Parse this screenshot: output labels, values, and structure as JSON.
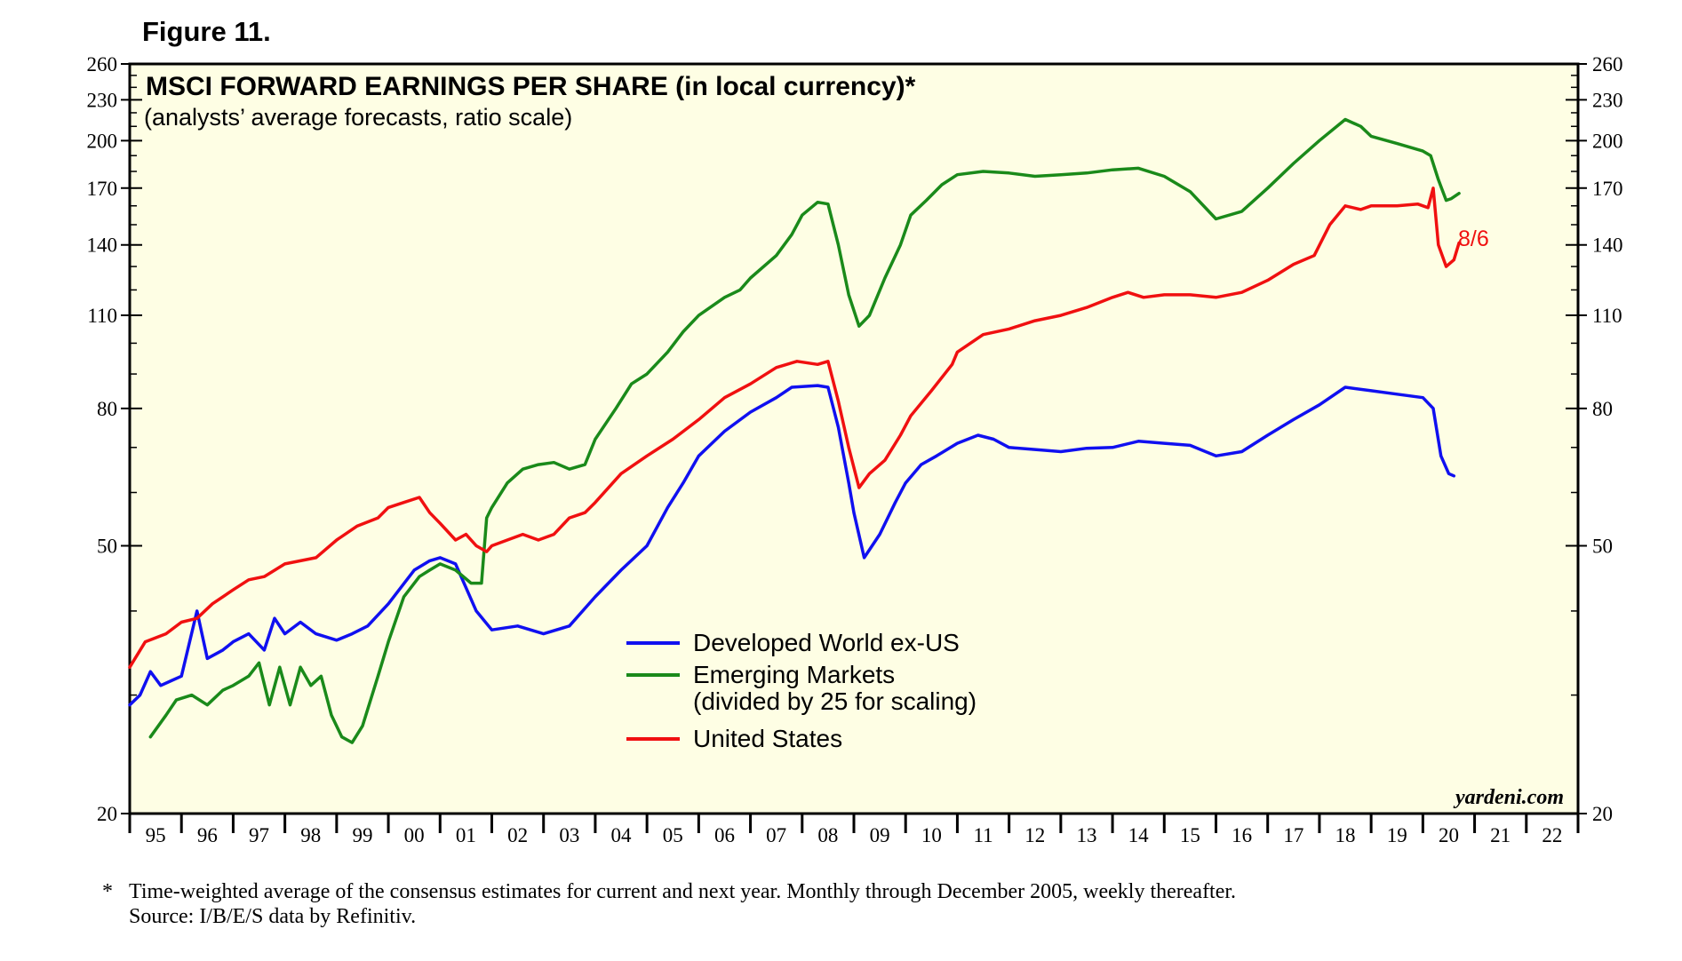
{
  "figure_label": "Figure 11.",
  "footnote": {
    "marker": "*",
    "line1": "Time-weighted average of the consensus estimates for current and next year. Monthly through December 2005, weekly thereafter.",
    "line2": "Source: I/B/E/S data by Refinitiv."
  },
  "colors": {
    "plot_bg": "#fefee4",
    "developed": "#1010f0",
    "emerging": "#1a8a1a",
    "us": "#f01010",
    "frame": "#000000"
  },
  "chart_data": {
    "type": "line",
    "title": "MSCI FORWARD EARNINGS PER SHARE (in local currency)*",
    "subtitle": "(analysts’ average forecasts, ratio scale)",
    "y_scale": "log",
    "ylim": [
      20,
      260
    ],
    "y_ticks": [
      20,
      50,
      80,
      110,
      140,
      170,
      200,
      230,
      260
    ],
    "xlim": [
      1995,
      2023
    ],
    "x_tick_labels": [
      "95",
      "96",
      "97",
      "98",
      "99",
      "00",
      "01",
      "02",
      "03",
      "04",
      "05",
      "06",
      "07",
      "08",
      "09",
      "10",
      "11",
      "12",
      "13",
      "14",
      "15",
      "16",
      "17",
      "18",
      "19",
      "20",
      "21",
      "22"
    ],
    "watermark": "yardeni.com",
    "end_annotation": "8/6",
    "legend_position": "center",
    "series": [
      {
        "name": "Developed World ex-US",
        "key": "developed",
        "points": [
          [
            1995.0,
            29
          ],
          [
            1995.2,
            30
          ],
          [
            1995.4,
            32.5
          ],
          [
            1995.6,
            31
          ],
          [
            1995.8,
            31.5
          ],
          [
            1996.0,
            32
          ],
          [
            1996.3,
            40
          ],
          [
            1996.5,
            34
          ],
          [
            1996.8,
            35
          ],
          [
            1997.0,
            36
          ],
          [
            1997.3,
            37
          ],
          [
            1997.6,
            35
          ],
          [
            1997.8,
            39
          ],
          [
            1998.0,
            37
          ],
          [
            1998.3,
            38.5
          ],
          [
            1998.6,
            37
          ],
          [
            1999.0,
            36.2
          ],
          [
            1999.3,
            37
          ],
          [
            1999.6,
            38
          ],
          [
            2000.0,
            41
          ],
          [
            2000.5,
            46
          ],
          [
            2000.8,
            47.5
          ],
          [
            2001.0,
            48
          ],
          [
            2001.3,
            47
          ],
          [
            2001.7,
            40
          ],
          [
            2002.0,
            37.5
          ],
          [
            2002.5,
            38
          ],
          [
            2003.0,
            37
          ],
          [
            2003.5,
            38
          ],
          [
            2004.0,
            42
          ],
          [
            2004.5,
            46
          ],
          [
            2005.0,
            50
          ],
          [
            2005.4,
            57
          ],
          [
            2005.7,
            62
          ],
          [
            2006.0,
            68
          ],
          [
            2006.5,
            74
          ],
          [
            2007.0,
            79
          ],
          [
            2007.5,
            83
          ],
          [
            2007.8,
            86
          ],
          [
            2008.3,
            86.5
          ],
          [
            2008.5,
            86
          ],
          [
            2008.7,
            75
          ],
          [
            2008.9,
            62
          ],
          [
            2009.0,
            56
          ],
          [
            2009.2,
            48
          ],
          [
            2009.5,
            52
          ],
          [
            2009.8,
            58
          ],
          [
            2010.0,
            62
          ],
          [
            2010.3,
            66
          ],
          [
            2010.6,
            68
          ],
          [
            2011.0,
            71
          ],
          [
            2011.4,
            73
          ],
          [
            2011.7,
            72
          ],
          [
            2012.0,
            70
          ],
          [
            2012.5,
            69.5
          ],
          [
            2013.0,
            69
          ],
          [
            2013.5,
            69.8
          ],
          [
            2014.0,
            70
          ],
          [
            2014.5,
            71.5
          ],
          [
            2015.0,
            71
          ],
          [
            2015.5,
            70.5
          ],
          [
            2016.0,
            68
          ],
          [
            2016.5,
            69
          ],
          [
            2017.0,
            73
          ],
          [
            2017.5,
            77
          ],
          [
            2018.0,
            81
          ],
          [
            2018.5,
            86
          ],
          [
            2019.0,
            85
          ],
          [
            2019.5,
            84
          ],
          [
            2020.0,
            83
          ],
          [
            2020.2,
            80
          ],
          [
            2020.35,
            68
          ],
          [
            2020.5,
            64
          ],
          [
            2020.6,
            63.5
          ]
        ]
      },
      {
        "name": "Emerging Markets (divided by 25 for scaling)",
        "key": "emerging",
        "points": [
          [
            1995.4,
            26
          ],
          [
            1995.7,
            28
          ],
          [
            1995.9,
            29.5
          ],
          [
            1996.2,
            30
          ],
          [
            1996.5,
            29
          ],
          [
            1996.8,
            30.5
          ],
          [
            1997.0,
            31
          ],
          [
            1997.3,
            32
          ],
          [
            1997.5,
            33.5
          ],
          [
            1997.7,
            29
          ],
          [
            1997.9,
            33
          ],
          [
            1998.1,
            29
          ],
          [
            1998.3,
            33
          ],
          [
            1998.5,
            31
          ],
          [
            1998.7,
            32
          ],
          [
            1998.9,
            28
          ],
          [
            1999.1,
            26
          ],
          [
            1999.3,
            25.5
          ],
          [
            1999.5,
            27
          ],
          [
            1999.8,
            32
          ],
          [
            2000.0,
            36
          ],
          [
            2000.3,
            42
          ],
          [
            2000.6,
            45
          ],
          [
            2000.8,
            46
          ],
          [
            2001.0,
            47
          ],
          [
            2001.3,
            46
          ],
          [
            2001.6,
            44
          ],
          [
            2001.8,
            44
          ],
          [
            2001.9,
            55
          ],
          [
            2002.0,
            57
          ],
          [
            2002.3,
            62
          ],
          [
            2002.6,
            65
          ],
          [
            2002.9,
            66
          ],
          [
            2003.2,
            66.5
          ],
          [
            2003.5,
            65
          ],
          [
            2003.8,
            66
          ],
          [
            2004.0,
            72
          ],
          [
            2004.4,
            80
          ],
          [
            2004.7,
            87
          ],
          [
            2005.0,
            90
          ],
          [
            2005.4,
            97
          ],
          [
            2005.7,
            104
          ],
          [
            2006.0,
            110
          ],
          [
            2006.5,
            117
          ],
          [
            2006.8,
            120
          ],
          [
            2007.0,
            125
          ],
          [
            2007.5,
            135
          ],
          [
            2007.8,
            145
          ],
          [
            2008.0,
            155
          ],
          [
            2008.3,
            162
          ],
          [
            2008.5,
            161
          ],
          [
            2008.7,
            140
          ],
          [
            2008.9,
            118
          ],
          [
            2009.1,
            106
          ],
          [
            2009.3,
            110
          ],
          [
            2009.6,
            125
          ],
          [
            2009.9,
            140
          ],
          [
            2010.1,
            155
          ],
          [
            2010.4,
            163
          ],
          [
            2010.7,
            172
          ],
          [
            2011.0,
            178
          ],
          [
            2011.5,
            180
          ],
          [
            2012.0,
            179
          ],
          [
            2012.5,
            177
          ],
          [
            2013.0,
            178
          ],
          [
            2013.5,
            179
          ],
          [
            2014.0,
            181
          ],
          [
            2014.5,
            182
          ],
          [
            2015.0,
            177
          ],
          [
            2015.5,
            168
          ],
          [
            2016.0,
            153
          ],
          [
            2016.5,
            157
          ],
          [
            2017.0,
            170
          ],
          [
            2017.5,
            185
          ],
          [
            2018.0,
            200
          ],
          [
            2018.5,
            215
          ],
          [
            2018.8,
            210
          ],
          [
            2019.0,
            203
          ],
          [
            2019.5,
            198
          ],
          [
            2020.0,
            193
          ],
          [
            2020.15,
            190
          ],
          [
            2020.3,
            175
          ],
          [
            2020.45,
            163
          ],
          [
            2020.55,
            164
          ],
          [
            2020.7,
            167
          ]
        ]
      },
      {
        "name": "United States",
        "key": "us",
        "points": [
          [
            1995.0,
            33
          ],
          [
            1995.3,
            36
          ],
          [
            1995.7,
            37
          ],
          [
            1996.0,
            38.5
          ],
          [
            1996.3,
            39
          ],
          [
            1996.6,
            41
          ],
          [
            1997.0,
            43
          ],
          [
            1997.3,
            44.5
          ],
          [
            1997.6,
            45
          ],
          [
            1998.0,
            47
          ],
          [
            1998.3,
            47.5
          ],
          [
            1998.6,
            48
          ],
          [
            1999.0,
            51
          ],
          [
            1999.4,
            53.5
          ],
          [
            1999.8,
            55
          ],
          [
            2000.0,
            57
          ],
          [
            2000.3,
            58
          ],
          [
            2000.6,
            59
          ],
          [
            2000.8,
            56
          ],
          [
            2001.0,
            54
          ],
          [
            2001.3,
            51
          ],
          [
            2001.5,
            52
          ],
          [
            2001.7,
            50
          ],
          [
            2001.9,
            49
          ],
          [
            2002.0,
            50
          ],
          [
            2002.3,
            51
          ],
          [
            2002.6,
            52
          ],
          [
            2002.9,
            51
          ],
          [
            2003.2,
            52
          ],
          [
            2003.5,
            55
          ],
          [
            2003.8,
            56
          ],
          [
            2004.0,
            58
          ],
          [
            2004.5,
            64
          ],
          [
            2005.0,
            68
          ],
          [
            2005.5,
            72
          ],
          [
            2006.0,
            77
          ],
          [
            2006.5,
            83
          ],
          [
            2007.0,
            87
          ],
          [
            2007.5,
            92
          ],
          [
            2007.9,
            94
          ],
          [
            2008.3,
            93
          ],
          [
            2008.5,
            94
          ],
          [
            2008.7,
            82
          ],
          [
            2008.9,
            70
          ],
          [
            2009.1,
            61
          ],
          [
            2009.3,
            64
          ],
          [
            2009.6,
            67
          ],
          [
            2009.9,
            73
          ],
          [
            2010.1,
            78
          ],
          [
            2010.5,
            85
          ],
          [
            2010.9,
            93
          ],
          [
            2011.0,
            97
          ],
          [
            2011.5,
            103
          ],
          [
            2012.0,
            105
          ],
          [
            2012.5,
            108
          ],
          [
            2013.0,
            110
          ],
          [
            2013.5,
            113
          ],
          [
            2014.0,
            117
          ],
          [
            2014.3,
            119
          ],
          [
            2014.6,
            117
          ],
          [
            2015.0,
            118
          ],
          [
            2015.5,
            118
          ],
          [
            2016.0,
            117
          ],
          [
            2016.5,
            119
          ],
          [
            2017.0,
            124
          ],
          [
            2017.5,
            131
          ],
          [
            2017.9,
            135
          ],
          [
            2018.2,
            150
          ],
          [
            2018.5,
            160
          ],
          [
            2018.8,
            158
          ],
          [
            2019.0,
            160
          ],
          [
            2019.5,
            160
          ],
          [
            2019.9,
            161
          ],
          [
            2020.1,
            159
          ],
          [
            2020.2,
            170
          ],
          [
            2020.3,
            140
          ],
          [
            2020.45,
            130
          ],
          [
            2020.6,
            133
          ],
          [
            2020.7,
            141
          ]
        ]
      }
    ]
  }
}
